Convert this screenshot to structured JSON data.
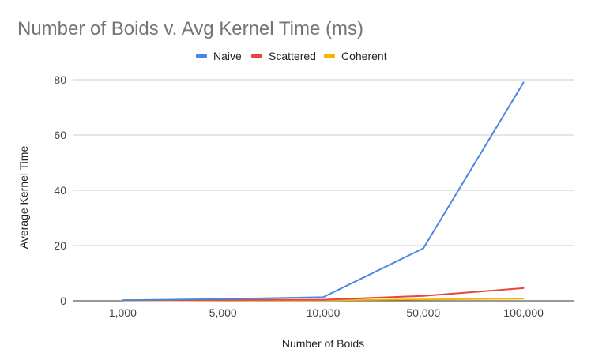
{
  "chart_data": {
    "type": "line",
    "title": "Number of Boids v. Avg Kernel Time (ms)",
    "xlabel": "Number of Boids",
    "ylabel": "Average Kernel Time",
    "categories": [
      "1,000",
      "5,000",
      "10,000",
      "50,000",
      "100,000"
    ],
    "ylim": [
      0,
      80
    ],
    "yticks": [
      0,
      20,
      40,
      60,
      80
    ],
    "grid": true,
    "legend_position": "top",
    "series": [
      {
        "name": "Naive",
        "color": "#4a86e8",
        "values": [
          0.2,
          0.7,
          1.3,
          19.0,
          79.0
        ]
      },
      {
        "name": "Scattered",
        "color": "#e8453c",
        "values": [
          0.2,
          0.3,
          0.4,
          1.8,
          4.6
        ]
      },
      {
        "name": "Coherent",
        "color": "#f4b400",
        "values": [
          0.1,
          0.2,
          0.2,
          0.5,
          0.8
        ]
      }
    ]
  }
}
